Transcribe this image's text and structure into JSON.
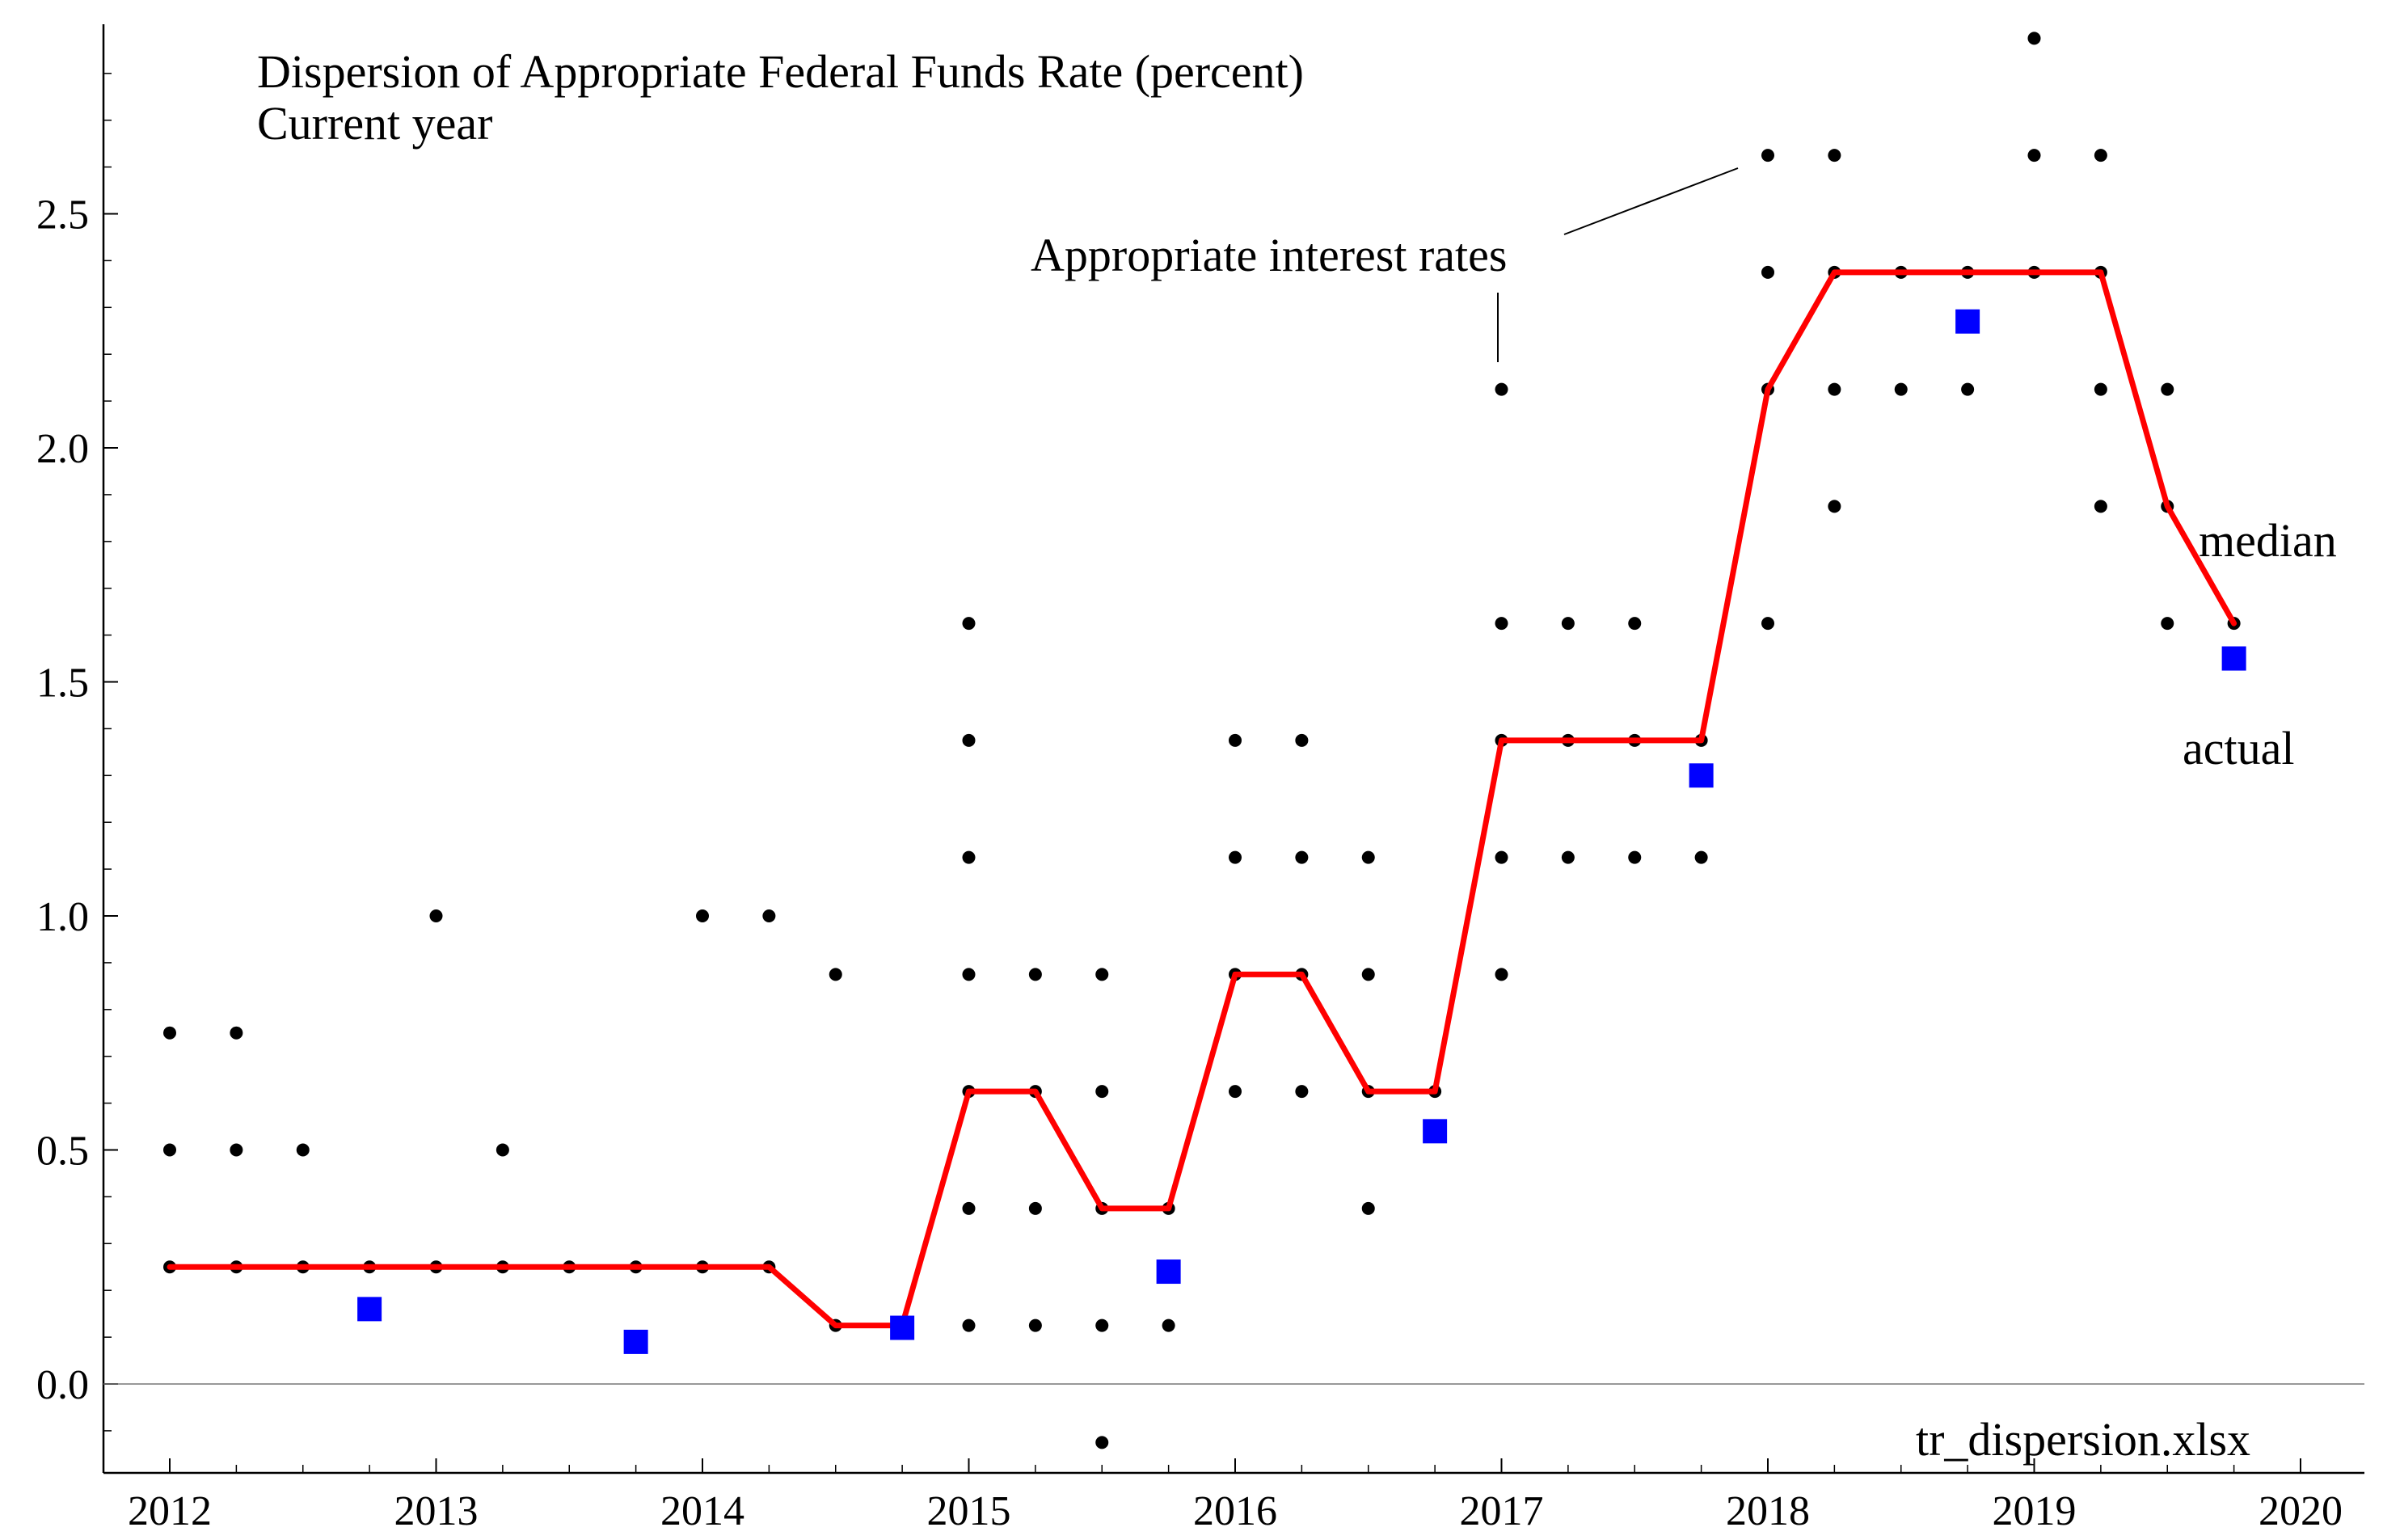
{
  "chart_data": {
    "type": "scatter",
    "title": "Dispersion of Appropriate Federal Funds Rate (percent)",
    "subtitle": "Current year",
    "xlabel": "",
    "ylabel": "",
    "xlim": [
      2012,
      2020
    ],
    "ylim": [
      -0.2,
      2.9
    ],
    "grid": false,
    "x_ticks": [
      "2012",
      "2013",
      "2014",
      "2015",
      "2016",
      "2017",
      "2018",
      "2019",
      "2020"
    ],
    "y_ticks": [
      "0.0",
      "0.5",
      "1.0",
      "1.5",
      "2.0",
      "2.5"
    ],
    "colors": {
      "dots": "#000000",
      "median": "#ff0000",
      "actual": "#0000ff",
      "axis": "#000000"
    },
    "series": [
      {
        "name": "Appropriate interest rates",
        "kind": "dots",
        "points": [
          [
            2012.0,
            0.25
          ],
          [
            2012.0,
            0.5
          ],
          [
            2012.0,
            0.75
          ],
          [
            2012.25,
            0.25
          ],
          [
            2012.25,
            0.5
          ],
          [
            2012.25,
            0.75
          ],
          [
            2012.5,
            0.25
          ],
          [
            2012.5,
            0.5
          ],
          [
            2012.75,
            0.25
          ],
          [
            2013.0,
            0.25
          ],
          [
            2013.0,
            1.0
          ],
          [
            2013.25,
            0.25
          ],
          [
            2013.25,
            0.5
          ],
          [
            2013.5,
            0.25
          ],
          [
            2013.75,
            0.25
          ],
          [
            2014.0,
            0.25
          ],
          [
            2014.0,
            1.0
          ],
          [
            2014.25,
            0.25
          ],
          [
            2014.25,
            1.0
          ],
          [
            2014.5,
            0.125
          ],
          [
            2014.5,
            0.875
          ],
          [
            2014.75,
            0.125
          ],
          [
            2015.0,
            0.125
          ],
          [
            2015.0,
            0.375
          ],
          [
            2015.0,
            0.625
          ],
          [
            2015.0,
            0.875
          ],
          [
            2015.0,
            1.125
          ],
          [
            2015.0,
            1.375
          ],
          [
            2015.0,
            1.625
          ],
          [
            2015.25,
            0.125
          ],
          [
            2015.25,
            0.375
          ],
          [
            2015.25,
            0.625
          ],
          [
            2015.25,
            0.875
          ],
          [
            2015.5,
            -0.125
          ],
          [
            2015.5,
            0.125
          ],
          [
            2015.5,
            0.375
          ],
          [
            2015.5,
            0.625
          ],
          [
            2015.5,
            0.875
          ],
          [
            2015.75,
            0.125
          ],
          [
            2015.75,
            0.375
          ],
          [
            2016.0,
            0.625
          ],
          [
            2016.0,
            0.875
          ],
          [
            2016.0,
            1.125
          ],
          [
            2016.0,
            1.375
          ],
          [
            2016.25,
            0.625
          ],
          [
            2016.25,
            0.875
          ],
          [
            2016.25,
            1.125
          ],
          [
            2016.25,
            1.375
          ],
          [
            2016.5,
            0.375
          ],
          [
            2016.5,
            0.625
          ],
          [
            2016.5,
            0.875
          ],
          [
            2016.5,
            1.125
          ],
          [
            2016.75,
            0.625
          ],
          [
            2017.0,
            0.875
          ],
          [
            2017.0,
            1.125
          ],
          [
            2017.0,
            1.375
          ],
          [
            2017.0,
            1.625
          ],
          [
            2017.0,
            2.125
          ],
          [
            2017.25,
            1.125
          ],
          [
            2017.25,
            1.375
          ],
          [
            2017.25,
            1.625
          ],
          [
            2017.5,
            1.125
          ],
          [
            2017.5,
            1.375
          ],
          [
            2017.5,
            1.625
          ],
          [
            2017.75,
            1.125
          ],
          [
            2017.75,
            1.375
          ],
          [
            2018.0,
            1.625
          ],
          [
            2018.0,
            2.125
          ],
          [
            2018.0,
            2.375
          ],
          [
            2018.0,
            2.625
          ],
          [
            2018.25,
            1.875
          ],
          [
            2018.25,
            2.125
          ],
          [
            2018.25,
            2.375
          ],
          [
            2018.25,
            2.625
          ],
          [
            2018.5,
            2.125
          ],
          [
            2018.5,
            2.375
          ],
          [
            2018.75,
            2.125
          ],
          [
            2018.75,
            2.375
          ],
          [
            2019.0,
            2.375
          ],
          [
            2019.0,
            2.625
          ],
          [
            2019.0,
            2.875
          ],
          [
            2019.25,
            1.875
          ],
          [
            2019.25,
            2.125
          ],
          [
            2019.25,
            2.375
          ],
          [
            2019.25,
            2.625
          ],
          [
            2019.5,
            1.625
          ],
          [
            2019.5,
            1.875
          ],
          [
            2019.5,
            2.125
          ],
          [
            2019.75,
            1.625
          ]
        ]
      },
      {
        "name": "median",
        "kind": "line",
        "x": [
          2012.0,
          2012.25,
          2012.5,
          2012.75,
          2013.0,
          2013.25,
          2013.5,
          2013.75,
          2014.0,
          2014.25,
          2014.5,
          2014.75,
          2015.0,
          2015.25,
          2015.5,
          2015.75,
          2016.0,
          2016.25,
          2016.5,
          2016.75,
          2017.0,
          2017.25,
          2017.5,
          2017.75,
          2018.0,
          2018.25,
          2018.5,
          2018.75,
          2019.0,
          2019.25,
          2019.5,
          2019.75
        ],
        "y": [
          0.25,
          0.25,
          0.25,
          0.25,
          0.25,
          0.25,
          0.25,
          0.25,
          0.25,
          0.25,
          0.125,
          0.125,
          0.625,
          0.625,
          0.375,
          0.375,
          0.875,
          0.875,
          0.625,
          0.625,
          1.375,
          1.375,
          1.375,
          1.375,
          2.125,
          2.375,
          2.375,
          2.375,
          2.375,
          2.375,
          1.875,
          1.625
        ]
      },
      {
        "name": "actual",
        "kind": "squares",
        "x": [
          2012.75,
          2013.75,
          2014.75,
          2015.75,
          2016.75,
          2017.75,
          2018.75,
          2019.75
        ],
        "y": [
          0.16,
          0.09,
          0.12,
          0.24,
          0.54,
          1.3,
          2.27,
          1.55
        ]
      }
    ],
    "annotations": {
      "dots_label": "Appropriate interest rates",
      "median_label": "median",
      "actual_label": "actual",
      "source": "tr_dispersion.xlsx"
    }
  }
}
